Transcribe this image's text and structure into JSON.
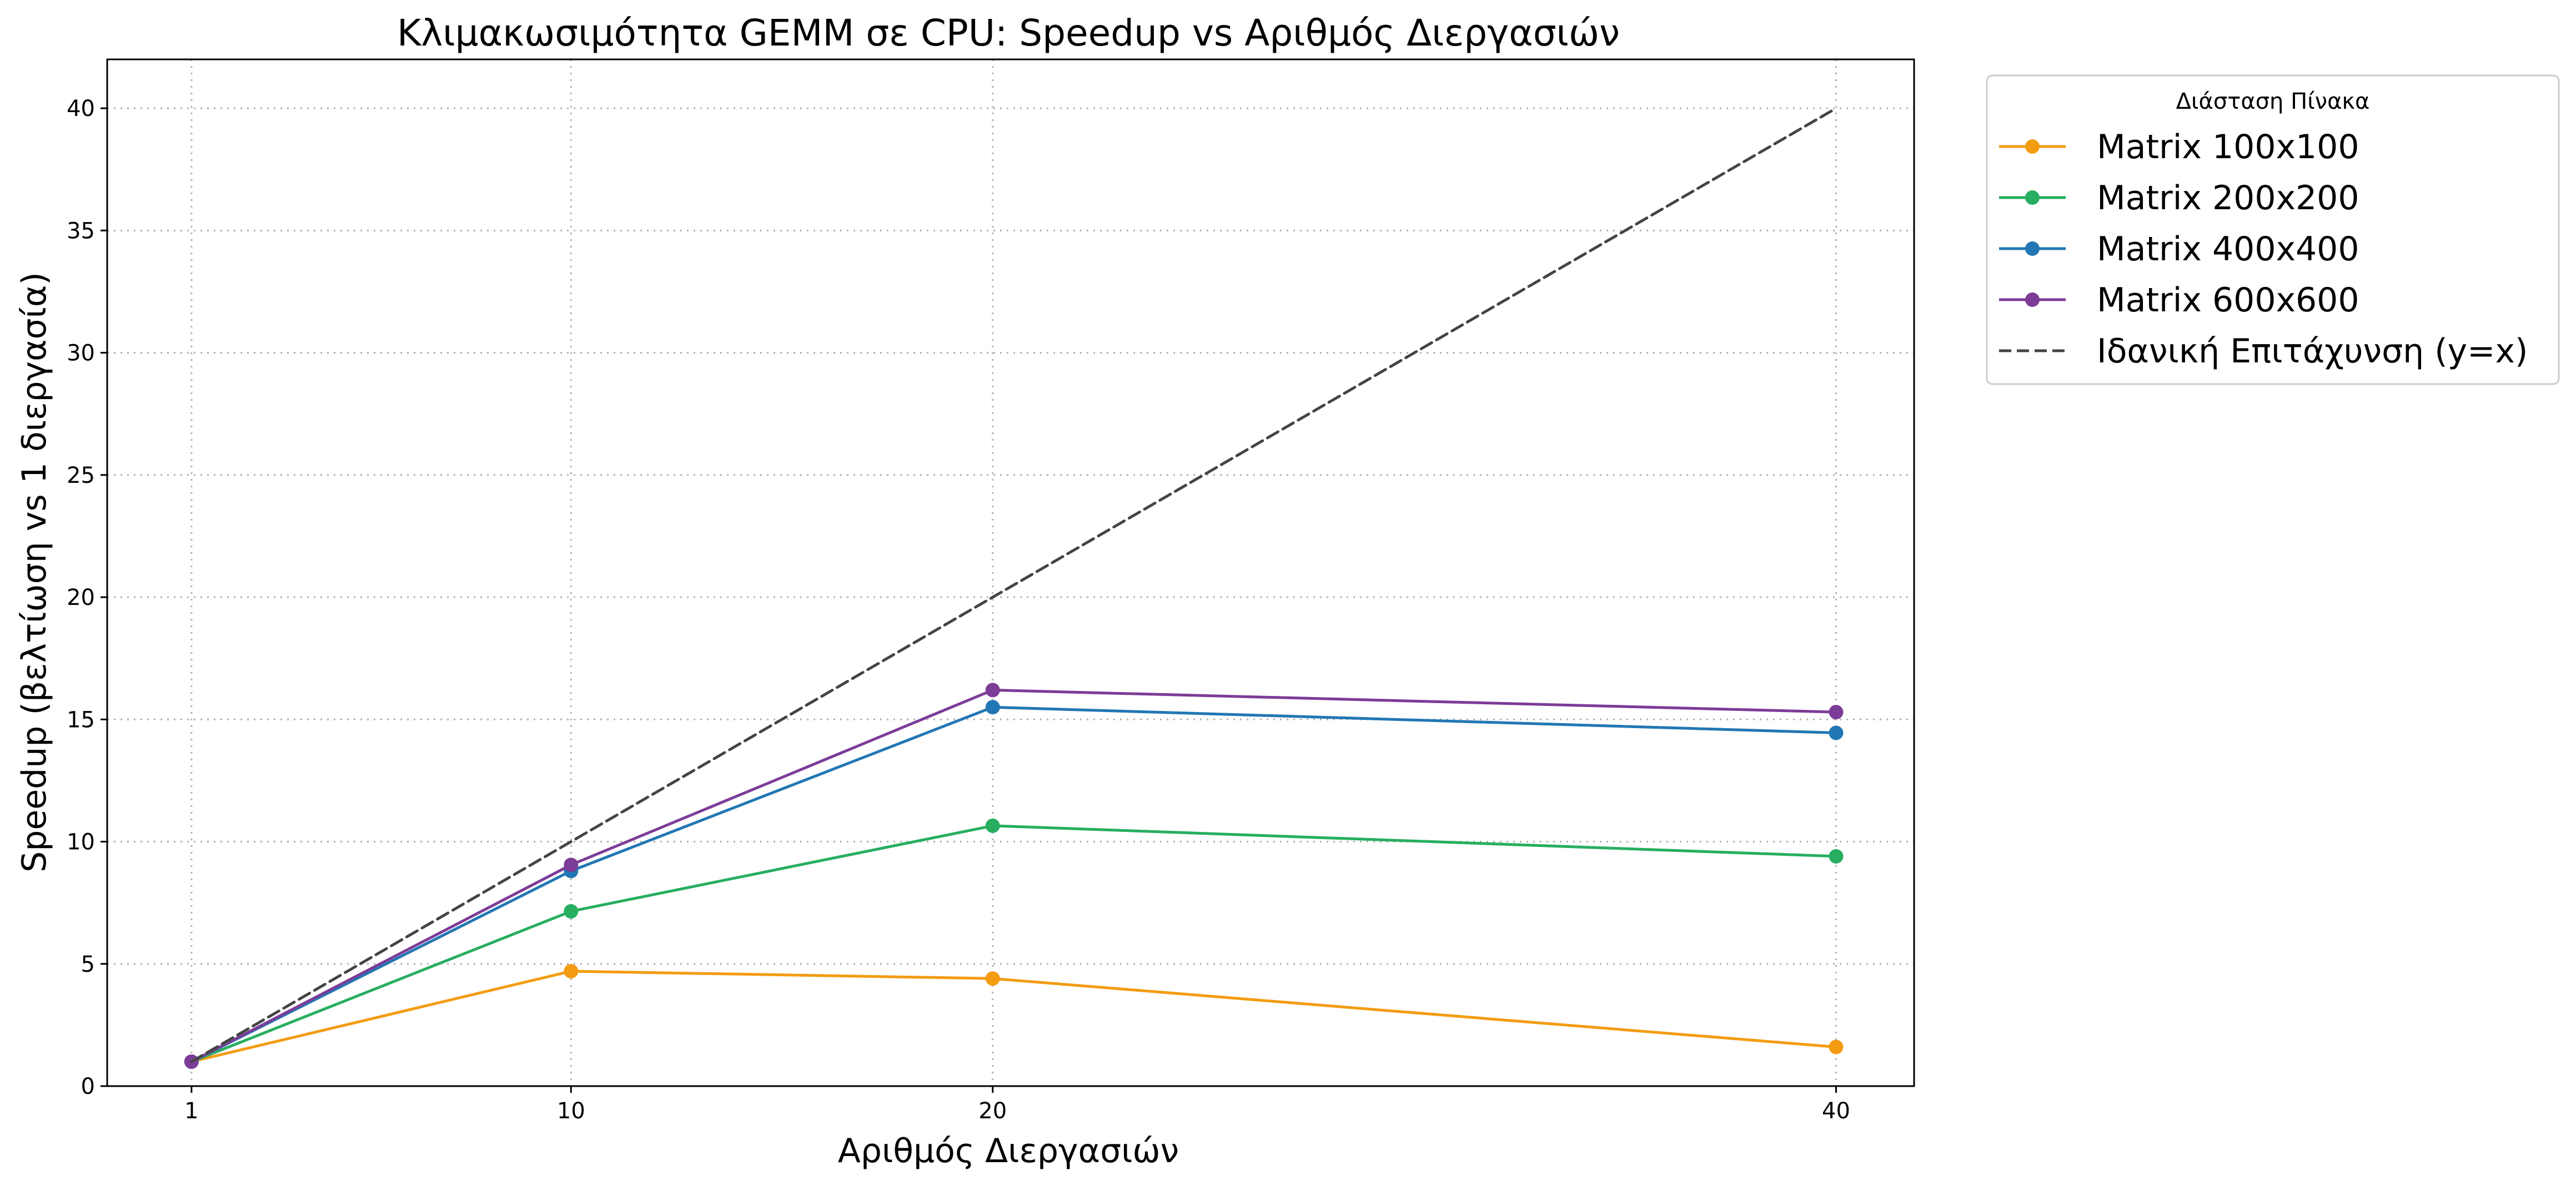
{
  "chart_data": {
    "type": "line",
    "title": "Κλιμακωσιμότητα GEMM σε CPU: Speedup vs Αριθμός Διεργασιών",
    "xlabel": "Αριθμός Διεργασιών",
    "ylabel": "Speedup (βελτίωση vs 1 διεργασία)",
    "x": [
      1,
      10,
      20,
      40
    ],
    "x_ticks": [
      1,
      10,
      20,
      40
    ],
    "y_ticks": [
      0,
      5,
      10,
      15,
      20,
      25,
      30,
      35,
      40
    ],
    "xlim": [
      -1,
      41.85
    ],
    "ylim": [
      0,
      42
    ],
    "grid": true,
    "legend_title": "Διάσταση Πίνακα",
    "legend_position": "outside-top-right",
    "series": [
      {
        "name": "Matrix 100x100",
        "color": "#F39C12",
        "style": "solid",
        "marker": "circle",
        "values": [
          1.0,
          4.7,
          4.4,
          1.6
        ]
      },
      {
        "name": "Matrix 200x200",
        "color": "#27AE60",
        "style": "solid",
        "marker": "circle",
        "values": [
          1.0,
          7.15,
          10.65,
          9.4
        ]
      },
      {
        "name": "Matrix 400x400",
        "color": "#2277B4",
        "style": "solid",
        "marker": "circle",
        "values": [
          1.0,
          8.8,
          15.5,
          14.45
        ]
      },
      {
        "name": "Matrix 600x600",
        "color": "#7D3C98",
        "style": "solid",
        "marker": "circle",
        "values": [
          1.0,
          9.05,
          16.2,
          15.3
        ]
      },
      {
        "name": "Ιδανική Επιτάχυνση (y=x)",
        "color": "#444444",
        "style": "dashed",
        "marker": "none",
        "values": [
          1,
          10,
          20,
          40
        ]
      }
    ]
  }
}
